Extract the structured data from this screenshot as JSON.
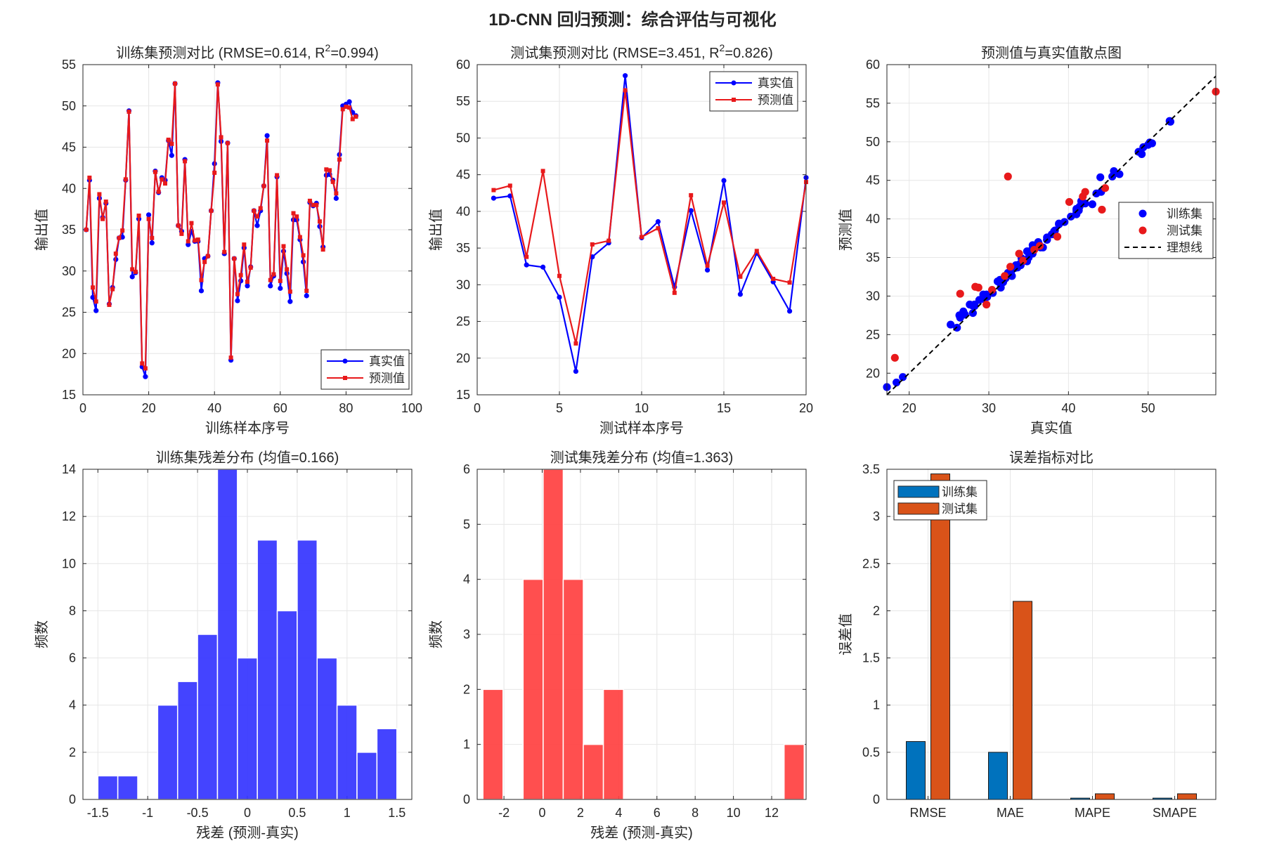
{
  "figure_title": "1D-CNN 回归预测：综合评估与可视化",
  "chart_data": [
    {
      "id": "train_compare",
      "type": "line",
      "title_prefix": "训练集预测对比 (RMSE=0.614, R",
      "title_sup": "2",
      "title_suffix": "=0.994)",
      "xlabel": "训练样本序号",
      "ylabel": "输出值",
      "xlim": [
        0,
        100
      ],
      "ylim": [
        15,
        55
      ],
      "xticks": [
        0,
        20,
        40,
        60,
        80,
        100
      ],
      "yticks": [
        15,
        20,
        25,
        30,
        35,
        40,
        45,
        50,
        55
      ],
      "grid": true,
      "legend": {
        "location": "bottom-right",
        "entries": [
          "真实值",
          "预测值"
        ]
      },
      "series": [
        {
          "name": "真实值",
          "color": "#0000ff",
          "marker": "circle",
          "x": [
            1,
            2,
            3,
            4,
            5,
            6,
            7,
            8,
            9,
            10,
            11,
            12,
            13,
            14,
            15,
            16,
            17,
            18,
            19,
            20,
            21,
            22,
            23,
            24,
            25,
            26,
            27,
            28,
            29,
            30,
            31,
            32,
            33,
            34,
            35,
            36,
            37,
            38,
            39,
            40,
            41,
            42,
            43,
            44,
            45,
            46,
            47,
            48,
            49,
            50,
            51,
            52,
            53,
            54,
            55,
            56,
            57,
            58,
            59,
            60,
            61,
            62,
            63,
            64,
            65,
            66,
            67,
            68,
            69,
            70,
            71,
            72,
            73,
            74,
            75,
            76,
            77,
            78,
            79,
            80,
            81,
            82,
            83
          ],
          "values": [
            35.0,
            41.0,
            26.8,
            25.2,
            38.8,
            36.5,
            38.2,
            26.0,
            28.0,
            31.4,
            34.0,
            34.1,
            41.0,
            49.4,
            29.3,
            29.8,
            36.3,
            18.4,
            17.2,
            36.8,
            33.4,
            42.1,
            39.5,
            41.3,
            41.0,
            45.8,
            44.0,
            52.7,
            35.5,
            34.8,
            43.5,
            33.2,
            34.8,
            33.6,
            33.6,
            27.6,
            31.5,
            31.8,
            37.3,
            43.0,
            52.8,
            45.7,
            32.1,
            45.5,
            19.2,
            31.5,
            26.4,
            28.8,
            32.8,
            28.2,
            30.5,
            37.3,
            35.5,
            37.3,
            40.3,
            46.4,
            28.2,
            29.4,
            41.4,
            27.9,
            32.4,
            29.7,
            26.3,
            36.2,
            36.2,
            33.8,
            31.1,
            27.0,
            38.3,
            37.9,
            38.2,
            35.4,
            32.9,
            41.6,
            41.7,
            41.0,
            38.8,
            44.1,
            50.0,
            50.2,
            50.5,
            49.2,
            48.8
          ]
        },
        {
          "name": "预测值",
          "color": "#e8191b",
          "marker": "square",
          "x": [
            1,
            2,
            3,
            4,
            5,
            6,
            7,
            8,
            9,
            10,
            11,
            12,
            13,
            14,
            15,
            16,
            17,
            18,
            19,
            20,
            21,
            22,
            23,
            24,
            25,
            26,
            27,
            28,
            29,
            30,
            31,
            32,
            33,
            34,
            35,
            36,
            37,
            38,
            39,
            40,
            41,
            42,
            43,
            44,
            45,
            46,
            47,
            48,
            49,
            50,
            51,
            52,
            53,
            54,
            55,
            56,
            57,
            58,
            59,
            60,
            61,
            62,
            63,
            64,
            65,
            66,
            67,
            68,
            69,
            70,
            71,
            72,
            73,
            74,
            75,
            76,
            77,
            78,
            79,
            80,
            81,
            82,
            83
          ],
          "values": [
            35.0,
            41.3,
            28.0,
            26.3,
            39.3,
            36.3,
            38.4,
            25.9,
            27.8,
            32.1,
            34.0,
            34.9,
            41.1,
            49.3,
            30.2,
            29.9,
            36.7,
            18.8,
            18.2,
            36.3,
            34.0,
            42.0,
            39.6,
            41.1,
            40.6,
            45.9,
            45.4,
            52.7,
            35.5,
            34.5,
            43.3,
            33.6,
            35.8,
            33.7,
            33.8,
            28.9,
            31.1,
            31.8,
            37.3,
            41.9,
            52.6,
            46.2,
            32.3,
            45.5,
            19.5,
            31.5,
            27.2,
            29.5,
            33.2,
            28.7,
            30.4,
            37.3,
            36.6,
            37.6,
            40.3,
            45.8,
            28.9,
            29.6,
            41.6,
            28.8,
            33.0,
            30.2,
            27.5,
            37.0,
            36.6,
            34.1,
            31.9,
            27.6,
            38.5,
            38.0,
            38.0,
            36.0,
            32.6,
            42.3,
            42.2,
            40.8,
            39.4,
            43.5,
            49.6,
            49.9,
            49.8,
            48.4,
            48.7
          ]
        }
      ]
    },
    {
      "id": "test_compare",
      "type": "line",
      "title_prefix": "测试集预测对比 (RMSE=3.451, R",
      "title_sup": "2",
      "title_suffix": "=0.826)",
      "xlabel": "测试样本序号",
      "ylabel": "输出值",
      "xlim": [
        0,
        20
      ],
      "ylim": [
        15,
        60
      ],
      "xticks": [
        0,
        5,
        10,
        15,
        20
      ],
      "yticks": [
        15,
        20,
        25,
        30,
        35,
        40,
        45,
        50,
        55,
        60
      ],
      "grid": true,
      "legend": {
        "location": "top-right",
        "entries": [
          "真实值",
          "预测值"
        ]
      },
      "series": [
        {
          "name": "真实值",
          "color": "#0000ff",
          "marker": "circle",
          "x": [
            1,
            2,
            3,
            4,
            5,
            6,
            7,
            8,
            9,
            10,
            11,
            12,
            13,
            14,
            15,
            16,
            17,
            18,
            19,
            20
          ],
          "values": [
            41.8,
            42.1,
            32.7,
            32.4,
            28.3,
            18.2,
            33.8,
            35.7,
            58.5,
            36.4,
            38.6,
            29.7,
            40.1,
            32.0,
            44.2,
            28.7,
            34.3,
            30.4,
            26.4,
            44.6
          ]
        },
        {
          "name": "预测值",
          "color": "#e8191b",
          "marker": "square",
          "x": [
            1,
            2,
            3,
            4,
            5,
            6,
            7,
            8,
            9,
            10,
            11,
            12,
            13,
            14,
            15,
            16,
            17,
            18,
            19,
            20
          ],
          "values": [
            42.9,
            43.5,
            33.8,
            45.5,
            31.2,
            22.0,
            35.5,
            36.0,
            56.5,
            36.5,
            37.7,
            28.9,
            42.2,
            32.6,
            41.2,
            31.1,
            34.6,
            30.8,
            30.3,
            44.0
          ]
        }
      ]
    },
    {
      "id": "pred_vs_true",
      "type": "scatter",
      "title": "预测值与真实值散点图",
      "xlabel": "真实值",
      "ylabel": "预测值",
      "xlim": [
        17.2,
        58.5
      ],
      "ylim": [
        17.2,
        60
      ],
      "xticks": [
        20,
        30,
        40,
        50
      ],
      "yticks": [
        20,
        25,
        30,
        35,
        40,
        45,
        50,
        55,
        60
      ],
      "grid": true,
      "legend": {
        "location": "right",
        "entries": [
          "训练集",
          "测试集",
          "理想线"
        ]
      },
      "ideal_line": {
        "name": "理想线",
        "from": [
          17.2,
          17.2
        ],
        "to": [
          58.5,
          58.5
        ],
        "color": "#000000",
        "style": "dashed"
      },
      "series": [
        {
          "name": "训练集",
          "color": "#0000ff",
          "source": "train_compare"
        },
        {
          "name": "测试集",
          "color": "#e8191b",
          "source": "test_compare"
        }
      ]
    },
    {
      "id": "train_resid_hist",
      "type": "bar",
      "subtype": "histogram",
      "title": "训练集残差分布 (均值=0.166)",
      "xlabel": "残差 (预测-真实)",
      "ylabel": "频数",
      "xlim": [
        -1.65,
        1.65
      ],
      "ylim": [
        0,
        14
      ],
      "xticks": [
        -1.5,
        -1,
        -0.5,
        0,
        0.5,
        1,
        1.5
      ],
      "yticks": [
        0,
        2,
        4,
        6,
        8,
        10,
        12,
        14
      ],
      "grid": true,
      "color": "#3434ff",
      "bin_edges": [
        -1.5,
        -1.3,
        -1.1,
        -0.9,
        -0.7,
        -0.5,
        -0.3,
        -0.1,
        0.1,
        0.3,
        0.5,
        0.7,
        0.9,
        1.1,
        1.3,
        1.5
      ],
      "counts": [
        1,
        1,
        0,
        4,
        5,
        7,
        14,
        6,
        11,
        8,
        11,
        6,
        4,
        2,
        3
      ]
    },
    {
      "id": "test_resid_hist",
      "type": "bar",
      "subtype": "histogram",
      "title": "测试集残差分布 (均值=1.363)",
      "xlabel": "残差 (预测-真实)",
      "ylabel": "频数",
      "xlim": [
        -3.4,
        13.8
      ],
      "ylim": [
        0,
        6
      ],
      "xticks": [
        -2,
        0,
        2,
        4,
        6,
        8,
        10,
        12
      ],
      "yticks": [
        0,
        1,
        2,
        3,
        4,
        5,
        6
      ],
      "grid": true,
      "color": "#ff4040",
      "bin_edges": [
        -3.1,
        -2.05,
        -1.0,
        0.05,
        1.1,
        2.15,
        3.2,
        4.25,
        5.3,
        6.35,
        7.4,
        8.45,
        9.5,
        10.55,
        11.6,
        12.65,
        13.7
      ],
      "counts": [
        2,
        0,
        4,
        6,
        4,
        1,
        2,
        0,
        0,
        0,
        0,
        0,
        0,
        0,
        0,
        1
      ]
    },
    {
      "id": "error_metrics",
      "type": "bar",
      "title": "误差指标对比",
      "xlabel": "",
      "ylabel": "误差值",
      "ylim": [
        0,
        3.5
      ],
      "yticks": [
        0,
        0.5,
        1,
        1.5,
        2,
        2.5,
        3,
        3.5
      ],
      "grid": true,
      "legend": {
        "location": "top-left",
        "entries": [
          "训练集",
          "测试集"
        ]
      },
      "categories": [
        "RMSE",
        "MAE",
        "MAPE",
        "SMAPE"
      ],
      "series": [
        {
          "name": "训练集",
          "color": "#0072bd",
          "values": [
            0.614,
            0.5,
            0.014,
            0.014
          ]
        },
        {
          "name": "测试集",
          "color": "#d95319",
          "values": [
            3.451,
            2.1,
            0.06,
            0.06
          ]
        }
      ]
    }
  ]
}
